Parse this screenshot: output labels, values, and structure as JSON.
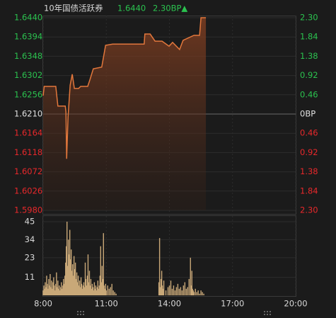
{
  "chart_data": [
    {
      "type": "line",
      "header": {
        "name": "10年国债活跃券",
        "price": "1.6440",
        "change": "2.30BP▲"
      },
      "x": [
        "8:00",
        "8:03",
        "8:36",
        "8:42",
        "9:03",
        "9:05",
        "9:07",
        "9:11",
        "9:17",
        "9:23",
        "9:29",
        "9:41",
        "9:47",
        "10:07",
        "10:13",
        "10:23",
        "10:47",
        "10:58",
        "11:18",
        "12:48",
        "12:50",
        "13:05",
        "13:19",
        "13:39",
        "13:59",
        "14:09",
        "14:29",
        "14:39",
        "15:10",
        "15:26",
        "15:30",
        "15:44"
      ],
      "series": [
        {
          "color": "#e2773c",
          "values": [
            1.6254,
            1.6276,
            1.6276,
            1.6229,
            1.6229,
            1.6215,
            1.6103,
            1.6203,
            1.6279,
            1.6305,
            1.6271,
            1.6271,
            1.6276,
            1.6276,
            1.6291,
            1.6318,
            1.6322,
            1.6374,
            1.6377,
            1.6377,
            1.6401,
            1.6401,
            1.6384,
            1.6384,
            1.6372,
            1.6381,
            1.6364,
            1.6386,
            1.6398,
            1.6398,
            1.644,
            1.644
          ]
        }
      ],
      "baseline": 1.621,
      "up_color": "#2bc24f",
      "down_color": "#e8282b",
      "flat_color": "#e0e0e0",
      "ylim": [
        1.598,
        1.644
      ],
      "yticks": [
        {
          "value": 1.644,
          "label": "1.6440"
        },
        1.6394,
        1.6348,
        1.6302,
        1.6256,
        {
          "value": 1.621,
          "label": "1.6210"
        },
        1.6164,
        1.6118,
        1.6072,
        1.6026,
        {
          "value": 1.598,
          "label": "1.5980"
        }
      ],
      "y2lim": [
        -2.3,
        2.3
      ],
      "y2ticks": [
        {
          "value": 2.3,
          "label": "2.30"
        },
        1.84,
        1.38,
        0.92,
        0.46,
        {
          "value": 0,
          "label": "0BP"
        },
        {
          "value": -0.46,
          "label": "0.46"
        },
        {
          "value": -0.92,
          "label": "0.92"
        },
        {
          "value": -1.38,
          "label": "1.38"
        },
        {
          "value": -1.84,
          "label": "1.84"
        },
        {
          "value": -2.3,
          "label": "2.30"
        }
      ],
      "grid": true
    },
    {
      "type": "bar",
      "x": [
        "8:00",
        "8:02",
        "8:04",
        "8:06",
        "8:08",
        "8:10",
        "8:12",
        "8:14",
        "8:16",
        "8:18",
        "8:20",
        "8:22",
        "8:24",
        "8:26",
        "8:28",
        "8:30",
        "8:32",
        "8:34",
        "8:36",
        "8:38",
        "8:40",
        "8:42",
        "8:44",
        "8:46",
        "8:48",
        "8:50",
        "8:52",
        "8:54",
        "8:56",
        "8:58",
        "9:00",
        "9:02",
        "9:04",
        "9:06",
        "9:08",
        "9:10",
        "9:12",
        "9:14",
        "9:16",
        "9:18",
        "9:20",
        "9:22",
        "9:24",
        "9:26",
        "9:28",
        "9:30",
        "9:32",
        "9:34",
        "9:36",
        "9:38",
        "9:40",
        "9:42",
        "9:44",
        "9:46",
        "9:48",
        "9:50",
        "9:52",
        "9:54",
        "9:56",
        "9:58",
        "10:00",
        "10:02",
        "10:04",
        "10:06",
        "10:08",
        "10:10",
        "10:12",
        "10:14",
        "10:16",
        "10:18",
        "10:20",
        "10:22",
        "10:24",
        "10:26",
        "10:28",
        "10:30",
        "10:32",
        "10:34",
        "10:36",
        "10:38",
        "10:40",
        "10:42",
        "10:44",
        "10:46",
        "10:48",
        "10:50",
        "10:52",
        "10:54",
        "10:56",
        "10:58",
        "11:00",
        "11:04",
        "11:08",
        "11:12",
        "11:16",
        "11:20",
        "11:24",
        "11:28",
        "13:30",
        "13:32",
        "13:34",
        "13:36",
        "13:38",
        "13:40",
        "13:42",
        "13:44",
        "13:50",
        "13:56",
        "14:00",
        "14:04",
        "14:08",
        "14:12",
        "14:16",
        "14:20",
        "14:24",
        "14:28",
        "14:32",
        "14:36",
        "14:40",
        "14:44",
        "14:48",
        "14:52",
        "14:56",
        "15:00",
        "15:02",
        "15:04",
        "15:06",
        "15:08",
        "15:10",
        "15:14",
        "15:18",
        "15:22",
        "15:26",
        "15:30",
        "15:34",
        "15:38"
      ],
      "values": [
        3,
        6,
        4,
        8,
        5,
        12,
        7,
        4,
        10,
        6,
        13,
        5,
        9,
        4,
        8,
        11,
        6,
        3,
        7,
        14,
        5,
        9,
        4,
        6,
        3,
        5,
        8,
        4,
        6,
        10,
        7,
        12,
        20,
        30,
        45,
        18,
        34,
        25,
        40,
        22,
        28,
        15,
        19,
        12,
        24,
        16,
        20,
        10,
        14,
        8,
        12,
        6,
        9,
        5,
        11,
        7,
        4,
        6,
        8,
        5,
        20,
        10,
        6,
        12,
        25,
        8,
        15,
        6,
        10,
        4,
        7,
        5,
        3,
        8,
        4,
        6,
        3,
        5,
        9,
        4,
        6,
        12,
        30,
        8,
        18,
        10,
        38,
        6,
        4,
        7,
        3,
        6,
        4,
        5,
        7,
        3,
        2,
        1,
        8,
        35,
        5,
        10,
        15,
        6,
        4,
        9,
        3,
        5,
        6,
        9,
        4,
        6,
        3,
        5,
        7,
        4,
        5,
        3,
        6,
        8,
        4,
        5,
        10,
        23,
        6,
        15,
        4,
        3,
        2,
        4,
        2,
        3,
        1,
        3,
        2,
        1
      ],
      "color": "#c9a878",
      "ylim": [
        0,
        45
      ],
      "yticks": [
        45,
        34,
        23,
        11
      ],
      "xlim": [
        "8:00",
        "20:00"
      ],
      "xticks": [
        "8:00",
        "11:00",
        "14:00",
        "17:00",
        "20:00"
      ],
      "grid": true
    }
  ]
}
